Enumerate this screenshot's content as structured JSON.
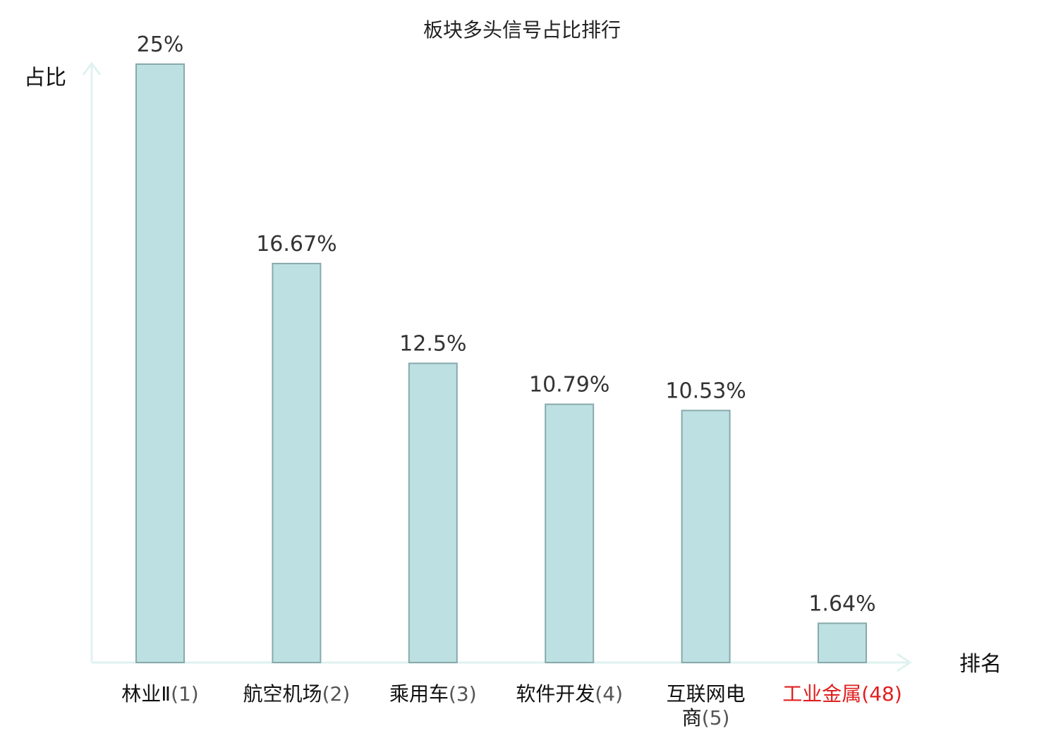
{
  "chart_data": {
    "type": "bar",
    "title": "板块多头信号占比排行",
    "ylabel": "占比",
    "xlabel": "排名",
    "ylim": [
      0,
      25
    ],
    "grid": false,
    "legend": "none",
    "categories": [
      {
        "name": "林业Ⅱ",
        "rank": "(1)",
        "highlight": false
      },
      {
        "name": "航空机场",
        "rank": "(2)",
        "highlight": false
      },
      {
        "name": "乘用车",
        "rank": "(3)",
        "highlight": false
      },
      {
        "name": "软件开发",
        "rank": "(4)",
        "highlight": false
      },
      {
        "name": "互联网电商",
        "rank": "(5)",
        "highlight": false
      },
      {
        "name": "工业金属",
        "rank": "(48)",
        "highlight": true
      }
    ],
    "values": [
      25,
      16.67,
      12.5,
      10.79,
      10.53,
      1.64
    ],
    "value_labels": [
      "25%",
      "16.67%",
      "12.5%",
      "10.79%",
      "10.53%",
      "1.64%"
    ],
    "colors": {
      "bar_fill": "#bde0e3",
      "bar_stroke": "#88a9ab",
      "axis": "#dff2ef",
      "label": "#111111",
      "rank": "#555555",
      "highlight": "#e02020"
    }
  }
}
